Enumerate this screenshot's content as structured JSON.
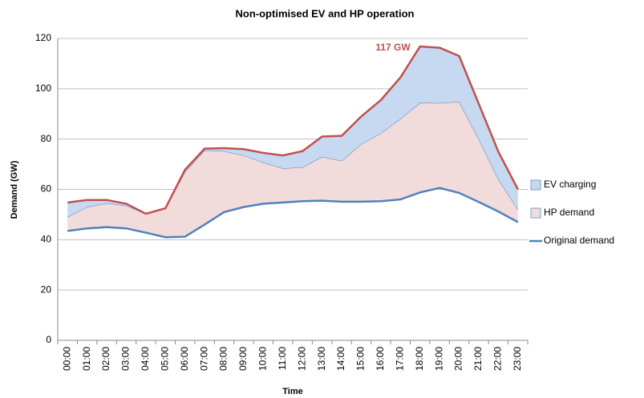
{
  "chart_data": {
    "type": "stacked_area",
    "title": "Non-optimised EV and HP operation",
    "x_label": "Time",
    "y_label": "Demand (GW)",
    "annotation": "117 GW",
    "annotation_color": "#c0504d",
    "categories": [
      "00:00",
      "01:00",
      "02:00",
      "03:00",
      "04:00",
      "05:00",
      "06:00",
      "07:00",
      "08:00",
      "09:00",
      "10:00",
      "11:00",
      "12:00",
      "13:00",
      "14:00",
      "15:00",
      "16:00",
      "17:00",
      "18:00",
      "19:00",
      "20:00",
      "21:00",
      "22:00",
      "23:00"
    ],
    "series": [
      {
        "name": "Original demand",
        "color": "#4f81bd",
        "style": "line",
        "values": [
          43.5,
          44.5,
          45,
          44.5,
          42.8,
          41,
          41.2,
          46,
          51,
          53,
          54.3,
          54.8,
          55.3,
          55.5,
          55.1,
          55.1,
          55.3,
          56,
          58.8,
          60.6,
          58.6,
          55,
          51.2,
          47
        ]
      },
      {
        "name": "HP demand",
        "color": "#f2dcdb",
        "line_color": "#4f81bd",
        "style": "area",
        "values": [
          5.5,
          8.5,
          9.5,
          9,
          7.5,
          11.3,
          25.8,
          29.5,
          24.2,
          20.5,
          16.4,
          13.5,
          13.5,
          17.5,
          16.2,
          22.9,
          27,
          32,
          35.6,
          33.7,
          36.2,
          25,
          12.8,
          5
        ]
      },
      {
        "name": "EV charging",
        "color": "#c6d9f1",
        "line_color": "#c0504d",
        "style": "area",
        "values": [
          5.8,
          2.8,
          1.3,
          0.8,
          0,
          0.2,
          0.8,
          0.7,
          1.2,
          2.5,
          3.8,
          5.2,
          6.4,
          8,
          10,
          11,
          13.2,
          16.5,
          22.4,
          22,
          18.2,
          14,
          11,
          8
        ]
      }
    ],
    "ylim": [
      0,
      120
    ],
    "yticks": [
      0,
      20,
      40,
      60,
      80,
      100,
      120
    ],
    "grid": true,
    "legend": "right"
  }
}
